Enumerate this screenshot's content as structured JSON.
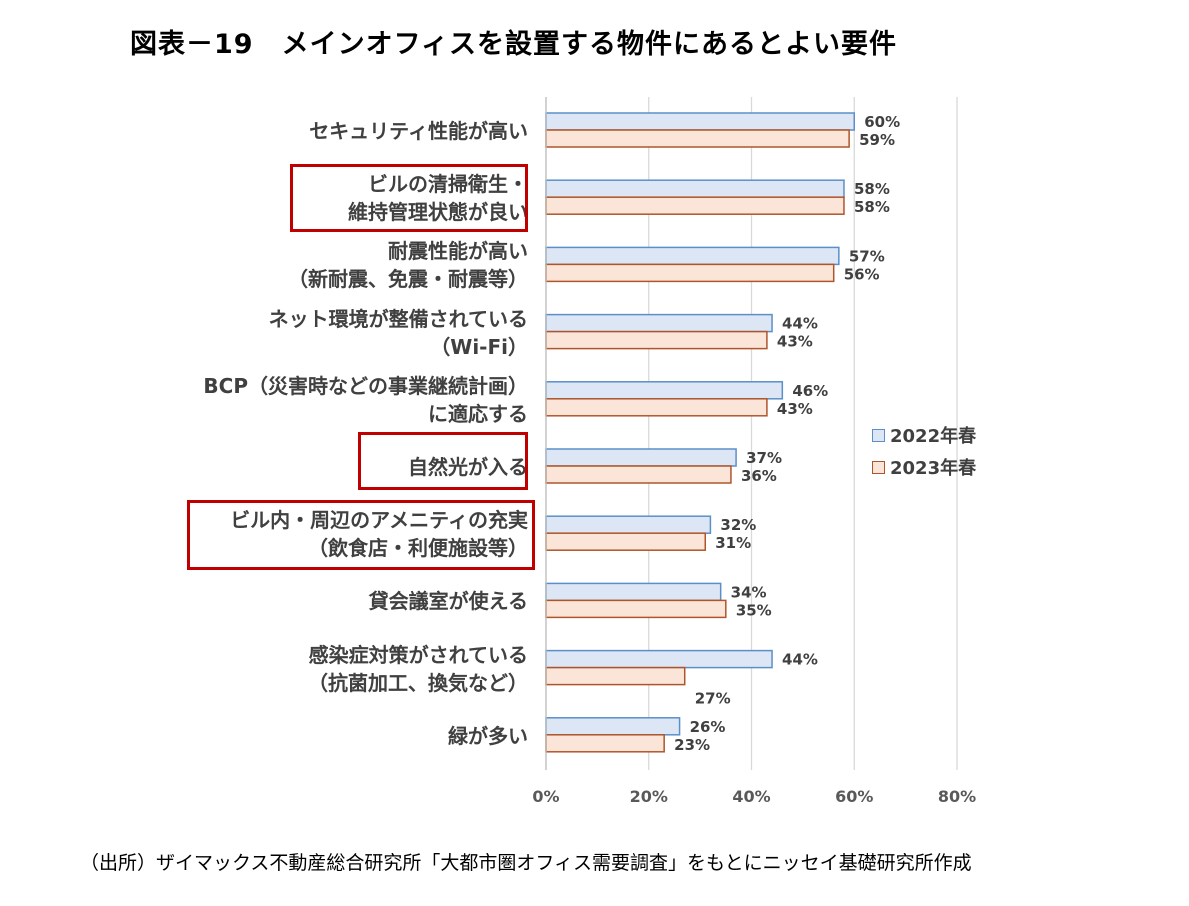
{
  "title": "図表－19　メインオフィスを設置する物件にあるとよい要件",
  "source": "（出所）ザイマックス不動産総合研究所「大都市圏オフィス需要調査」をもとにニッセイ基礎研究所作成",
  "colors": {
    "series_2022_fill": "#dce6f5",
    "series_2022_stroke": "#5b8fc9",
    "series_2023_fill": "#fbe5d9",
    "series_2023_stroke": "#b0552a",
    "highlight": "#c00000",
    "grid": "#d9d9d9"
  },
  "chart_data": {
    "type": "bar",
    "orientation": "horizontal",
    "categories": [
      [
        "セキュリティ性能が高い"
      ],
      [
        "ビルの清掃衛生・",
        "維持管理状態が良い"
      ],
      [
        "耐震性能が高い",
        "（新耐震、免震・耐震等）"
      ],
      [
        "ネット環境が整備されている",
        "（Wi-Fi）"
      ],
      [
        "BCP（災害時などの事業継続計画）",
        "に適応する"
      ],
      [
        "自然光が入る"
      ],
      [
        "ビル内・周辺のアメニティの充実",
        "（飲食店・利便施設等）"
      ],
      [
        "貸会議室が使える"
      ],
      [
        "感染症対策がされている",
        "（抗菌加工、換気など）"
      ],
      [
        "緑が多い"
      ]
    ],
    "highlighted": [
      1,
      5,
      6
    ],
    "series": [
      {
        "name": "2022年春",
        "values": [
          60,
          58,
          57,
          44,
          46,
          37,
          32,
          34,
          44,
          26
        ]
      },
      {
        "name": "2023年春",
        "values": [
          59,
          58,
          56,
          43,
          43,
          36,
          31,
          35,
          27,
          23
        ]
      }
    ],
    "data_labels": [
      [
        "60%",
        "58%",
        "57%",
        "44%",
        "46%",
        "37%",
        "32%",
        "34%",
        "44%",
        "26%"
      ],
      [
        "59%",
        "58%",
        "56%",
        "43%",
        "43%",
        "36%",
        "31%",
        "35%",
        "27%",
        "23%"
      ]
    ],
    "x_ticks": [
      "0%",
      "20%",
      "40%",
      "60%",
      "80%"
    ],
    "xlim": [
      0,
      80
    ],
    "grid": true,
    "legend_position": "right"
  }
}
